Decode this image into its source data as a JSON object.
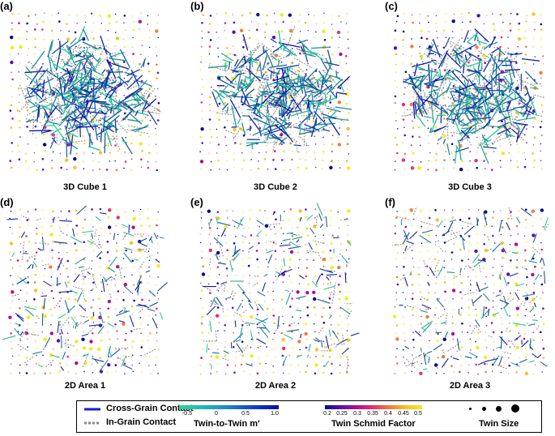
{
  "figure": {
    "panels": [
      {
        "id": "a",
        "label": "(a)",
        "caption": "3D Cube 1",
        "kind": "3D",
        "seed": 11
      },
      {
        "id": "b",
        "label": "(b)",
        "caption": "3D Cube 2",
        "kind": "3D",
        "seed": 29
      },
      {
        "id": "c",
        "label": "(c)",
        "caption": "3D Cube 3",
        "kind": "3D",
        "seed": 47
      },
      {
        "id": "d",
        "label": "(d)",
        "caption": "2D Area 1",
        "kind": "2D",
        "seed": 63
      },
      {
        "id": "e",
        "label": "(e)",
        "caption": "2D Area 2",
        "kind": "2D",
        "seed": 81
      },
      {
        "id": "f",
        "label": "(f)",
        "caption": "2D Area 3",
        "kind": "2D",
        "seed": 97
      }
    ]
  },
  "legend": {
    "cross_grain_label": "Cross-Grain Contact",
    "in_grain_label": "In-Grain Contact",
    "mprime_title": "Twin-to-Twin m′",
    "mprime_ticks": [
      "-0.5",
      "0",
      "0.5",
      "1.0"
    ],
    "mprime_range": [
      -0.7,
      1.0
    ],
    "mprime_tick_values": [
      -0.5,
      0,
      0.5,
      1.0
    ],
    "schmid_title": "Twin Schmid Factor",
    "schmid_ticks": [
      "0.2",
      "0.25",
      "0.3",
      "0.35",
      "0.4",
      "0.45",
      "0.5"
    ],
    "schmid_range": [
      0.2,
      0.5
    ],
    "size_title": "Twin Size",
    "colors": {
      "cross_grain": "#1a1ad6",
      "in_grain": "#8a8a8a",
      "mprime_low": "#2ad59a",
      "mprime_high": "#0a0aa8"
    }
  }
}
